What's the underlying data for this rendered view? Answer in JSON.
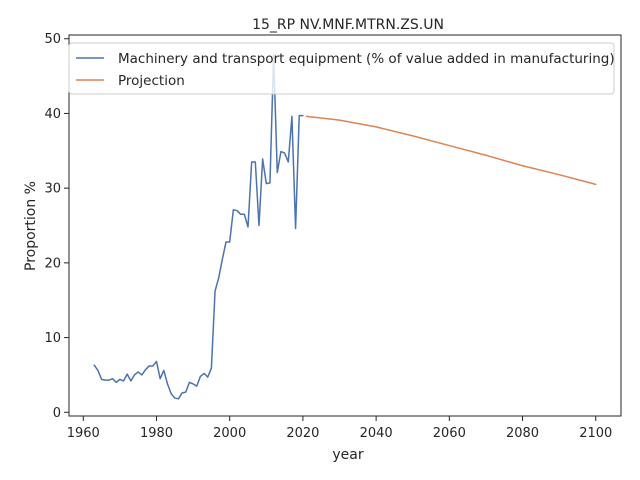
{
  "chart_data": {
    "type": "line",
    "title": "15_RP NV.MNF.MTRN.ZS.UN",
    "xlabel": "year",
    "ylabel": "Proportion %",
    "xlim": [
      1956.1,
      2106.9
    ],
    "ylim": [
      -0.5,
      50.5
    ],
    "xticks": [
      1960,
      1980,
      2000,
      2020,
      2040,
      2060,
      2080,
      2100
    ],
    "yticks": [
      0,
      10,
      20,
      30,
      40,
      50
    ],
    "grid": false,
    "legend_position": "top-right",
    "series": [
      {
        "name": "Machinery and transport equipment (% of value added in manufacturing)",
        "color": "#4c72b0",
        "x": [
          1963,
          1964,
          1965,
          1966,
          1967,
          1968,
          1969,
          1970,
          1971,
          1972,
          1973,
          1974,
          1975,
          1976,
          1977,
          1978,
          1979,
          1980,
          1981,
          1982,
          1983,
          1984,
          1985,
          1986,
          1987,
          1988,
          1989,
          1990,
          1991,
          1992,
          1993,
          1994,
          1995,
          1996,
          1997,
          1998,
          1999,
          2000,
          2001,
          2002,
          2003,
          2004,
          2005,
          2006,
          2007,
          2008,
          2009,
          2010,
          2011,
          2012,
          2013,
          2014,
          2015,
          2016,
          2017,
          2018,
          2019,
          2020
        ],
        "y": [
          6.3,
          5.6,
          4.4,
          4.3,
          4.3,
          4.5,
          4.0,
          4.4,
          4.2,
          5.1,
          4.2,
          5.0,
          5.4,
          5.0,
          5.7,
          6.2,
          6.2,
          6.8,
          4.5,
          5.6,
          3.8,
          2.5,
          1.9,
          1.8,
          2.6,
          2.7,
          4.0,
          3.8,
          3.5,
          4.8,
          5.2,
          4.7,
          5.9,
          16.2,
          18.0,
          20.5,
          22.8,
          22.8,
          27.1,
          27.0,
          26.5,
          26.5,
          24.8,
          33.5,
          33.5,
          25.0,
          33.9,
          30.6,
          30.7,
          47.8,
          32.1,
          34.9,
          34.7,
          33.5,
          39.6,
          24.6,
          39.7,
          39.7
        ]
      },
      {
        "name": "Projection",
        "color": "#dd8452",
        "x": [
          2021,
          2030,
          2040,
          2050,
          2060,
          2070,
          2080,
          2090,
          2100
        ],
        "y": [
          39.6,
          39.1,
          38.2,
          37.0,
          35.7,
          34.4,
          33.0,
          31.8,
          30.5
        ]
      }
    ]
  }
}
